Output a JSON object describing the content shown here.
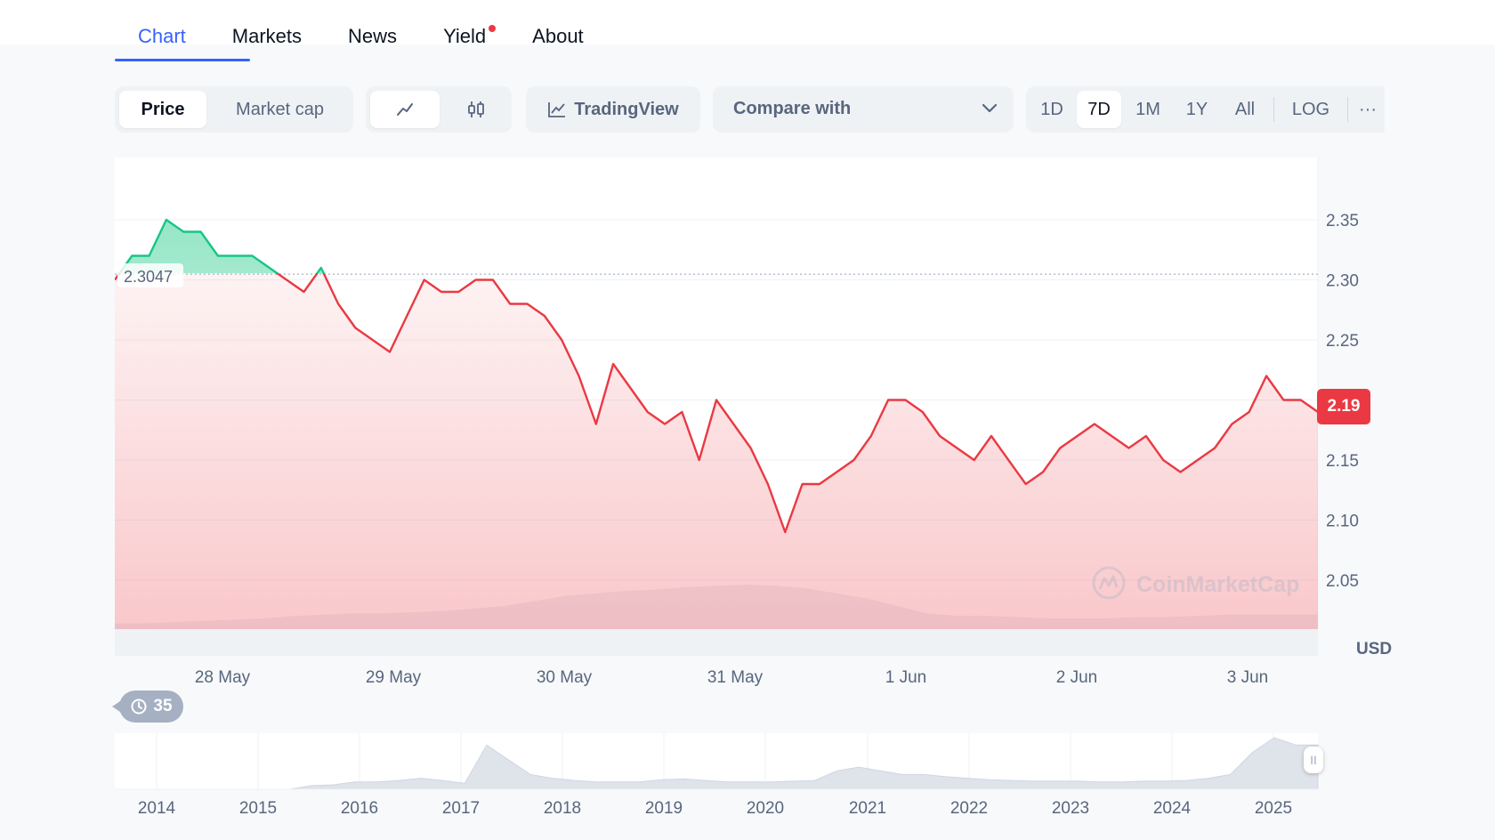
{
  "nav": {
    "tabs": [
      {
        "label": "Chart",
        "active": true
      },
      {
        "label": "Markets",
        "active": false
      },
      {
        "label": "News",
        "active": false
      },
      {
        "label": "Yield",
        "active": false,
        "dot": true
      },
      {
        "label": "About",
        "active": false
      }
    ]
  },
  "toolbar": {
    "type_toggle": [
      "Price",
      "Market cap"
    ],
    "type_selected": "Price",
    "style_icons": [
      "line-chart-icon",
      "candlestick-icon"
    ],
    "tradingview_label": "TradingView",
    "compare_label": "Compare with",
    "ranges": [
      "1D",
      "7D",
      "1M",
      "1Y",
      "All",
      "LOG"
    ],
    "range_selected": "7D",
    "more_label": "···"
  },
  "chart": {
    "currency": "USD",
    "reference_label": "2.3047",
    "current_price": "2.19",
    "watermark": "CoinMarketCap",
    "history_count": "35"
  },
  "colors": {
    "up": "#16c784",
    "down": "#ea3943",
    "accent": "#3861fb"
  },
  "chart_data": {
    "type": "line",
    "title": "",
    "xlabel": "",
    "ylabel": "USD",
    "ylim": [
      2.0,
      2.4
    ],
    "yticks": [
      "2.35",
      "2.30",
      "2.25",
      "2.20",
      "2.15",
      "2.10",
      "2.05"
    ],
    "xticks": [
      "28 May",
      "29 May",
      "30 May",
      "31 May",
      "1 Jun",
      "2 Jun",
      "3 Jun"
    ],
    "reference_value": 2.3047,
    "last_value": 2.19,
    "series": [
      {
        "values": [
          2.3,
          2.32,
          2.32,
          2.35,
          2.34,
          2.34,
          2.32,
          2.32,
          2.32,
          2.31,
          2.3,
          2.29,
          2.31,
          2.28,
          2.26,
          2.25,
          2.24,
          2.27,
          2.3,
          2.29,
          2.29,
          2.3,
          2.3,
          2.28,
          2.28,
          2.27,
          2.25,
          2.22,
          2.18,
          2.23,
          2.21,
          2.19,
          2.18,
          2.19,
          2.15,
          2.2,
          2.18,
          2.16,
          2.13,
          2.09,
          2.13,
          2.13,
          2.14,
          2.15,
          2.17,
          2.2,
          2.2,
          2.19,
          2.17,
          2.16,
          2.15,
          2.17,
          2.15,
          2.13,
          2.14,
          2.16,
          2.17,
          2.18,
          2.17,
          2.16,
          2.17,
          2.15,
          2.14,
          2.15,
          2.16,
          2.18,
          2.19,
          2.22,
          2.2,
          2.2,
          2.19
        ]
      }
    ],
    "volume": [
      26,
      26,
      27,
      28,
      29,
      30,
      32,
      33,
      34,
      34,
      35,
      36,
      38,
      40,
      44,
      48,
      50,
      52,
      53,
      55,
      56,
      57,
      56,
      54,
      50,
      46,
      40,
      34,
      32,
      32,
      31,
      30,
      30,
      30,
      31,
      31,
      32,
      33,
      33,
      33,
      33
    ],
    "navigator": {
      "years": [
        "2014",
        "2015",
        "2016",
        "2017",
        "2018",
        "2019",
        "2020",
        "2021",
        "2022",
        "2023",
        "2024",
        "2025"
      ],
      "values": [
        0,
        0,
        0,
        0,
        0,
        0,
        0,
        0,
        0,
        0.5,
        0.6,
        1,
        1,
        1.2,
        1.5,
        1.2,
        0.8,
        6,
        4,
        2,
        1.5,
        1.2,
        1,
        1,
        1,
        1.3,
        1.4,
        1.2,
        1,
        1,
        1,
        1.1,
        1.2,
        2.5,
        3,
        2.5,
        2,
        2,
        1.7,
        1.5,
        1.3,
        1.2,
        1.1,
        1.1,
        1.1,
        1,
        1,
        1.1,
        1.1,
        1.2,
        1.5,
        2,
        5,
        7,
        6,
        6
      ]
    }
  }
}
